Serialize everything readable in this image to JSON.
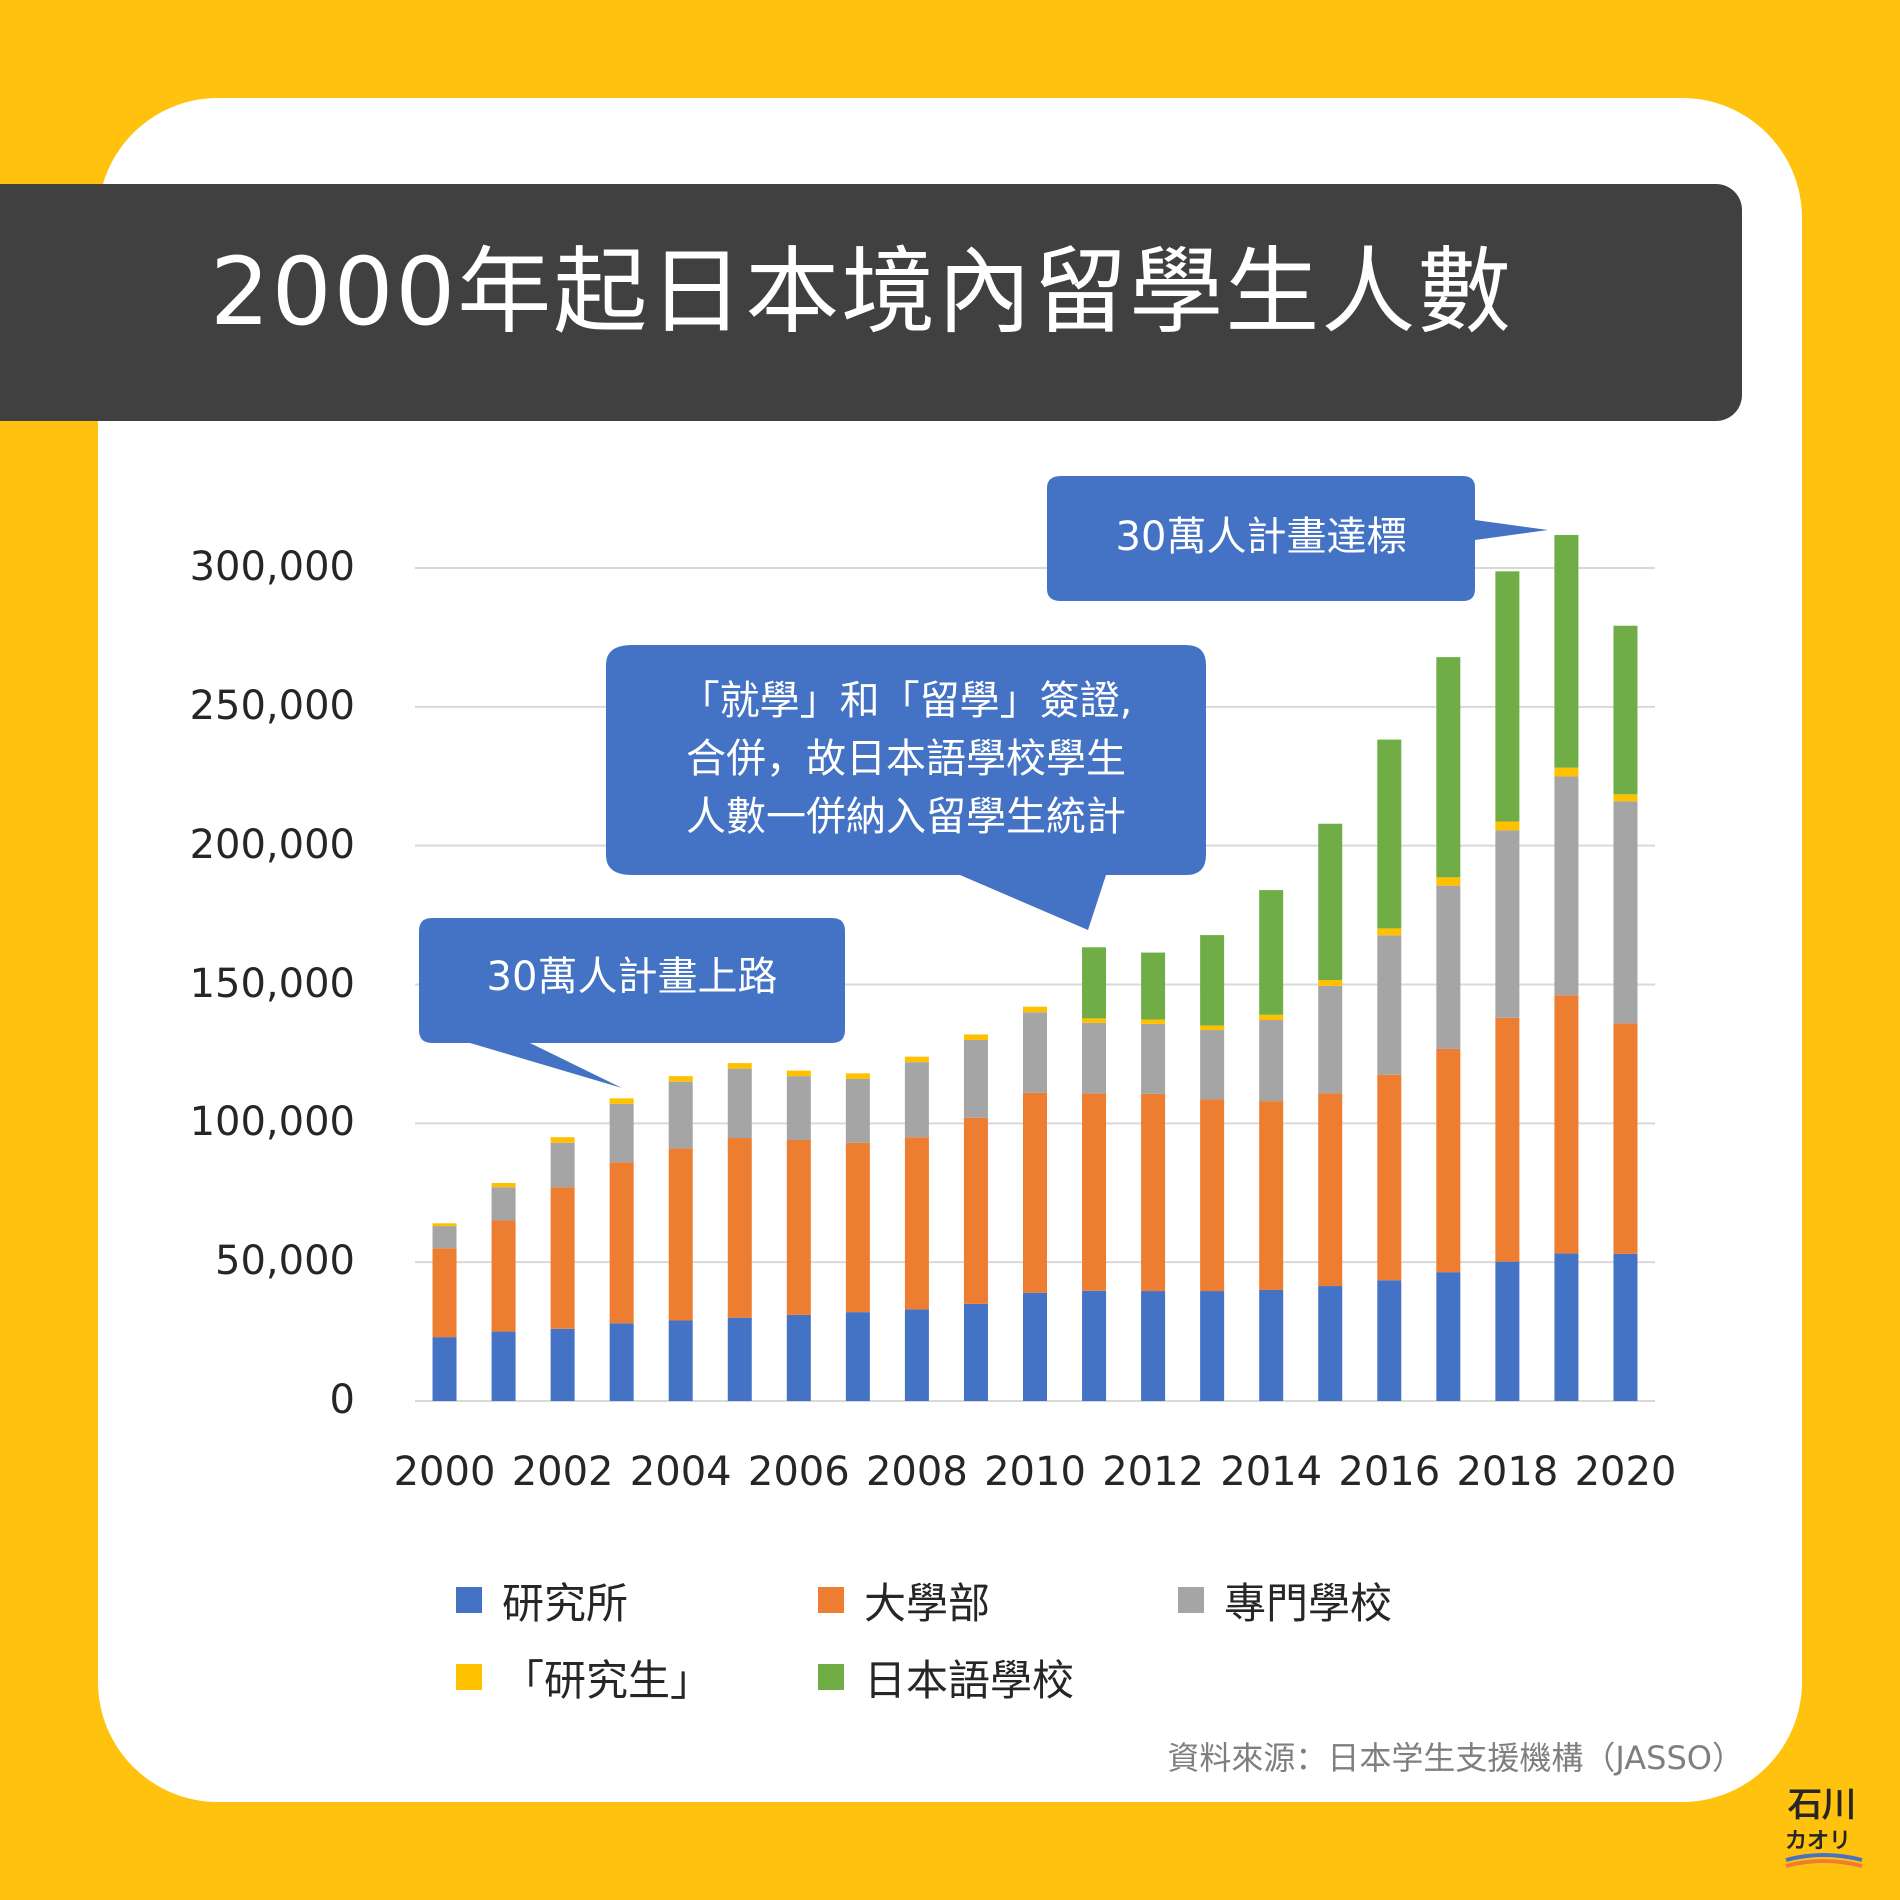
{
  "title": "2000年起日本境內留學生人數",
  "source": "資料來源：日本学生支援機構（JASSO）",
  "logo": {
    "text_top": "石川",
    "text_bottom": "カオリ"
  },
  "colors": {
    "background": "#FFC20E",
    "card": "#FFFFFF",
    "title_bar": "#404040",
    "callout": "#4472C4"
  },
  "callouts": [
    {
      "id": "c1",
      "lines": [
        "30萬人計畫上路"
      ]
    },
    {
      "id": "c2",
      "lines": [
        "「就學」和「留學」簽證,",
        "合併，故日本語學校學生",
        "人數一併納入留學生統計"
      ]
    },
    {
      "id": "c3",
      "lines": [
        "30萬人計畫達標"
      ]
    }
  ],
  "chart_data": {
    "type": "bar",
    "stacked": true,
    "title": "2000年起日本境內留學生人數",
    "categories": [
      "2000",
      "2001",
      "2002",
      "2003",
      "2004",
      "2005",
      "2006",
      "2007",
      "2008",
      "2009",
      "2010",
      "2011",
      "2012",
      "2013",
      "2014",
      "2015",
      "2016",
      "2017",
      "2018",
      "2019",
      "2020"
    ],
    "x_tick_labels": [
      "2000",
      "2002",
      "2004",
      "2006",
      "2008",
      "2010",
      "2012",
      "2014",
      "2016",
      "2018",
      "2020"
    ],
    "y_tick_labels": [
      "0",
      "50,000",
      "100,000",
      "150,000",
      "200,000",
      "250,000",
      "300,000"
    ],
    "ylim": [
      0,
      320000
    ],
    "grid": true,
    "legend_position": "bottom",
    "series": [
      {
        "name": "研究所",
        "color": "#4472C4",
        "values": [
          23000,
          25000,
          26000,
          28000,
          29000,
          30000,
          31000,
          32000,
          33000,
          35000,
          39000,
          39700,
          39600,
          39600,
          40000,
          41400,
          43500,
          46400,
          50200,
          53100,
          53000
        ]
      },
      {
        "name": "大學部",
        "color": "#ED7D31",
        "values": [
          32000,
          40000,
          51000,
          58000,
          62000,
          64700,
          63000,
          61000,
          62000,
          67000,
          72000,
          71000,
          71000,
          69000,
          68000,
          69400,
          74000,
          80400,
          87800,
          93000,
          83000
        ]
      },
      {
        "name": "專門學校",
        "color": "#A5A5A5",
        "values": [
          8000,
          12000,
          16000,
          21000,
          24000,
          25000,
          23000,
          23000,
          27000,
          28000,
          29000,
          25500,
          25200,
          25000,
          29200,
          38700,
          50200,
          58800,
          67500,
          78800,
          80000
        ]
      },
      {
        "name": "「研究生」",
        "color": "#FFC000",
        "values": [
          1000,
          1500,
          2000,
          2000,
          2000,
          2000,
          2000,
          2000,
          2000,
          2000,
          2000,
          1600,
          1600,
          1600,
          1900,
          2100,
          2500,
          3000,
          3200,
          3200,
          2500
        ]
      },
      {
        "name": "日本語學校",
        "color": "#70AD47",
        "values": [
          0,
          0,
          0,
          0,
          0,
          0,
          0,
          0,
          0,
          0,
          0,
          25600,
          24100,
          32600,
          44900,
          56300,
          68000,
          79300,
          90100,
          83800,
          60700
        ]
      }
    ]
  }
}
